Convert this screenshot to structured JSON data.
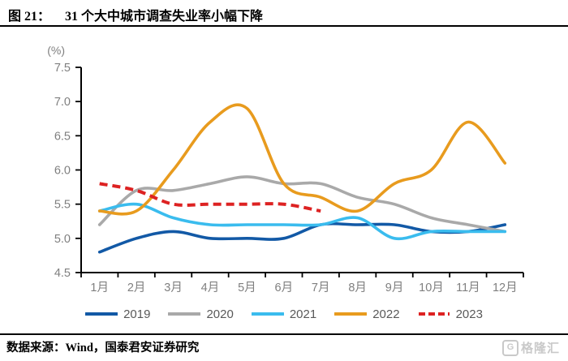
{
  "header": {
    "figure_label": "图 21：",
    "title": "31 个大中城市调查失业率小幅下降"
  },
  "chart_data": {
    "type": "line",
    "title": "31 个大中城市调查失业率小幅下降",
    "unit_label": "(%)",
    "categories": [
      "1月",
      "2月",
      "3月",
      "4月",
      "5月",
      "6月",
      "7月",
      "8月",
      "9月",
      "10月",
      "11月",
      "12月"
    ],
    "ylim": [
      4.5,
      7.5
    ],
    "ytick_step": 0.5,
    "ytick_labels": [
      "4.5",
      "5.0",
      "5.5",
      "6.0",
      "6.5",
      "7.0",
      "7.5"
    ],
    "grid": false,
    "smoothed": true,
    "legend_position": "bottom",
    "axis_color": "#000000",
    "tick_label_color": "#7f7f7f",
    "series": [
      {
        "name": "2019",
        "color": "#1259A6",
        "style": "solid",
        "values": [
          4.8,
          5.0,
          5.1,
          5.0,
          5.0,
          5.0,
          5.2,
          5.2,
          5.2,
          5.1,
          5.1,
          5.2
        ]
      },
      {
        "name": "2020",
        "color": "#A9A9A9",
        "style": "solid",
        "values": [
          5.2,
          5.7,
          5.7,
          5.8,
          5.9,
          5.8,
          5.8,
          5.6,
          5.5,
          5.3,
          5.2,
          5.1
        ]
      },
      {
        "name": "2021",
        "color": "#3ABCEE",
        "style": "solid",
        "values": [
          5.4,
          5.5,
          5.3,
          5.2,
          5.2,
          5.2,
          5.2,
          5.3,
          5.0,
          5.1,
          5.1,
          5.1
        ]
      },
      {
        "name": "2022",
        "color": "#E89B1E",
        "style": "solid",
        "values": [
          5.4,
          5.4,
          6.0,
          6.7,
          6.9,
          5.8,
          5.6,
          5.4,
          5.8,
          6.0,
          6.7,
          6.1
        ]
      },
      {
        "name": "2023",
        "color": "#DD2222",
        "style": "dashed",
        "values": [
          5.8,
          5.7,
          5.5,
          5.5,
          5.5,
          5.5,
          5.4
        ]
      }
    ]
  },
  "footer": {
    "source": "数据来源：Wind，国泰君安证券研究",
    "logo_g": "G",
    "logo_text": "格隆汇"
  }
}
